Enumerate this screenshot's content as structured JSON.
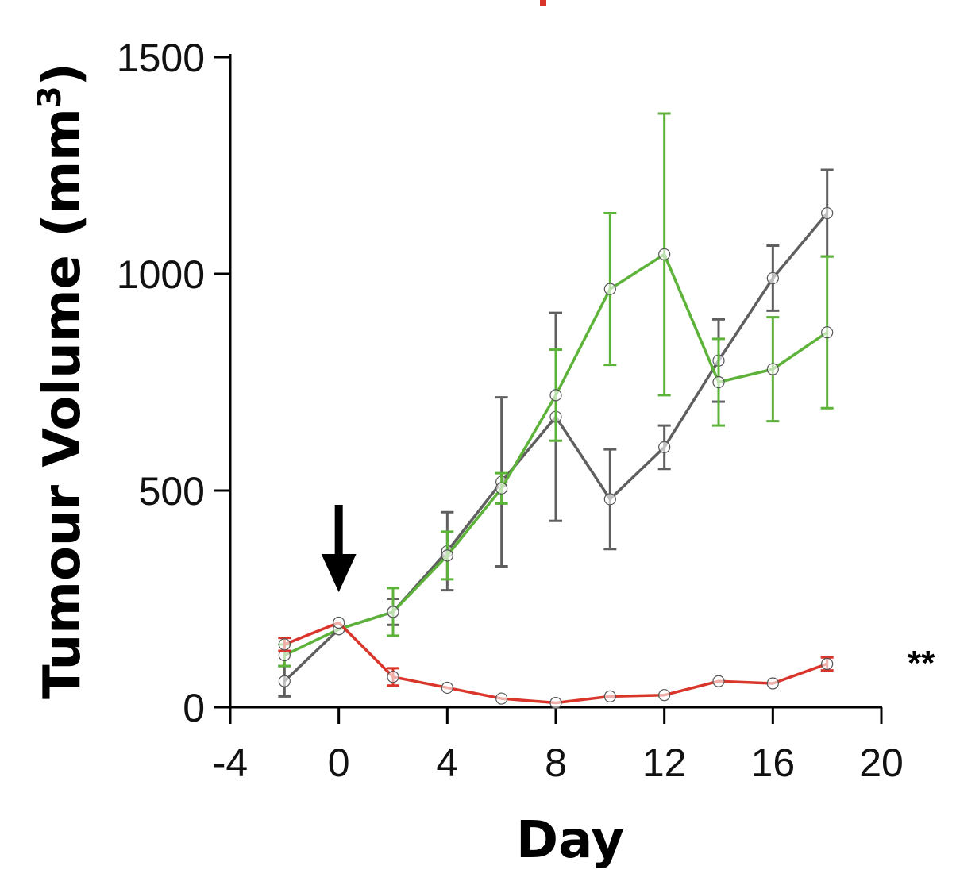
{
  "chart_data": {
    "type": "line",
    "title": "",
    "xlabel": "Day",
    "ylabel_main": "Tumour Volume (mm",
    "ylabel_sup": "3",
    "ylabel_close": ")",
    "xlim": [
      -4,
      20
    ],
    "ylim": [
      0,
      1500
    ],
    "xticks": [
      -4,
      0,
      4,
      8,
      12,
      16,
      20
    ],
    "yticks": [
      0,
      500,
      1000,
      1500
    ],
    "treatment_arrow_day": 0,
    "series": [
      {
        "name": "gray",
        "color": "#5f5f5f",
        "x": [
          -2,
          0,
          2,
          4,
          6,
          8,
          10,
          12,
          14,
          16,
          18
        ],
        "values": [
          60,
          180,
          220,
          360,
          520,
          670,
          480,
          600,
          800,
          990,
          1140
        ],
        "errors": [
          35,
          0,
          30,
          90,
          195,
          240,
          115,
          50,
          95,
          75,
          100
        ]
      },
      {
        "name": "green",
        "color": "#5db33a",
        "x": [
          -2,
          0,
          2,
          4,
          6,
          8,
          10,
          12,
          14,
          16,
          18
        ],
        "values": [
          120,
          180,
          220,
          350,
          505,
          720,
          965,
          1045,
          750,
          780,
          865
        ],
        "errors": [
          25,
          0,
          55,
          55,
          35,
          105,
          175,
          325,
          100,
          120,
          175
        ]
      },
      {
        "name": "red",
        "color": "#d9352a",
        "x": [
          -2,
          0,
          2,
          4,
          6,
          8,
          10,
          12,
          14,
          16,
          18
        ],
        "values": [
          145,
          195,
          70,
          45,
          20,
          10,
          25,
          28,
          60,
          55,
          100
        ],
        "errors": [
          15,
          0,
          20,
          0,
          0,
          0,
          0,
          0,
          0,
          0,
          15
        ]
      }
    ],
    "annotations": [
      {
        "text": "**",
        "series": "red"
      }
    ]
  }
}
